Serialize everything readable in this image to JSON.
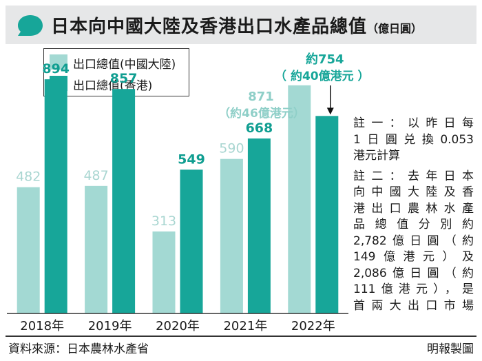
{
  "title": {
    "main": "日本向中國大陸及香港出口水產品總值",
    "unit": "（億日圓）"
  },
  "colors": {
    "mainland": "#a3d9d3",
    "hongkong": "#17a699",
    "mainland_label": "#a9d6d1",
    "hongkong_label": "#109e91",
    "callout_2022": "#17a699",
    "callout_2021": "#8fcfc8"
  },
  "chart_data": {
    "type": "bar",
    "categories": [
      "2018年",
      "2019年",
      "2020年",
      "2021年",
      "2022年"
    ],
    "series": [
      {
        "name": "出口總值(中國大陸)",
        "values": [
          482,
          487,
          313,
          590,
          871
        ]
      },
      {
        "name": "出口總值(香港)",
        "values": [
          894,
          857,
          549,
          668,
          754
        ]
      }
    ],
    "data_labels": [
      [
        "482",
        "487",
        "313",
        "590",
        ""
      ],
      [
        "894",
        "857",
        "549",
        "668",
        ""
      ]
    ],
    "annotations": [
      {
        "target": "2022 出口總值(香港)",
        "lines": [
          "約754",
          "（ 約40億港元 ）"
        ]
      },
      {
        "target": "2022 出口總值(中國大陸)",
        "lines": [
          "871",
          "（約46億港元）"
        ]
      }
    ],
    "ylim": [
      0,
      960
    ],
    "grid": false,
    "legend": "top-left"
  },
  "notes": {
    "note1": [
      "註一：以昨日每",
      "1日圓兑換0.053",
      "港元計算"
    ],
    "note2": [
      "註二：去年日本",
      "向中國大陸及香",
      "港出口農林水產",
      "品總值分別約",
      "2,782億日圓（約",
      "149億港元）及",
      "2,086億日圓（約",
      "111億港元），是",
      "首兩大出口市場"
    ]
  },
  "footer": {
    "source": "資料來源：日本農林水產省",
    "credit": "明報製圖"
  }
}
